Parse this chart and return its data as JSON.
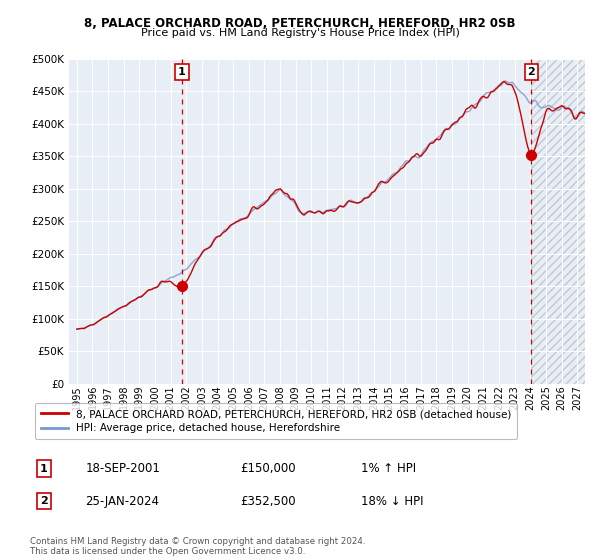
{
  "title1": "8, PALACE ORCHARD ROAD, PETERCHURCH, HEREFORD, HR2 0SB",
  "title2": "Price paid vs. HM Land Registry's House Price Index (HPI)",
  "legend_line1": "8, PALACE ORCHARD ROAD, PETERCHURCH, HEREFORD, HR2 0SB (detached house)",
  "legend_line2": "HPI: Average price, detached house, Herefordshire",
  "annotation1_label": "1",
  "annotation1_date": "18-SEP-2001",
  "annotation1_price": "£150,000",
  "annotation1_hpi": "1% ↑ HPI",
  "annotation2_label": "2",
  "annotation2_date": "25-JAN-2024",
  "annotation2_price": "£352,500",
  "annotation2_hpi": "18% ↓ HPI",
  "footer1": "Contains HM Land Registry data © Crown copyright and database right 2024.",
  "footer2": "This data is licensed under the Open Government Licence v3.0.",
  "sale1_year": 2001.72,
  "sale1_price": 150000,
  "sale2_year": 2024.07,
  "sale2_price": 352500,
  "hpi_color": "#7799cc",
  "sale_color": "#cc0000",
  "dot_color": "#cc0000",
  "vline_color": "#cc0000",
  "bg_color": "#e8eef5",
  "grid_color": "#ffffff",
  "ylim_max": 500000,
  "xlim_min": 1994.5,
  "xlim_max": 2027.5,
  "yticks": [
    0,
    50000,
    100000,
    150000,
    200000,
    250000,
    300000,
    350000,
    400000,
    450000,
    500000
  ],
  "xticks": [
    1995,
    1996,
    1997,
    1998,
    1999,
    2000,
    2001,
    2002,
    2003,
    2004,
    2005,
    2006,
    2007,
    2008,
    2009,
    2010,
    2011,
    2012,
    2013,
    2014,
    2015,
    2016,
    2017,
    2018,
    2019,
    2020,
    2021,
    2022,
    2023,
    2024,
    2025,
    2026,
    2027
  ]
}
